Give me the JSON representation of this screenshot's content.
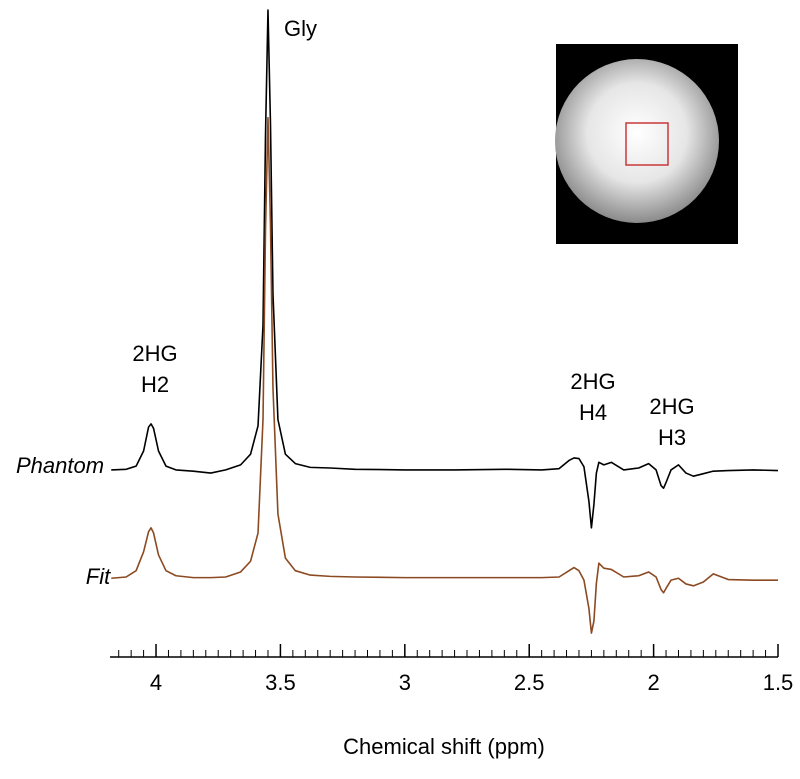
{
  "chart_data": {
    "type": "line",
    "x_label": "Chemical shift (ppm)",
    "x": [
      4.18,
      4.12,
      4.08,
      4.05,
      4.03,
      4.02,
      4.01,
      3.99,
      3.96,
      3.92,
      3.85,
      3.78,
      3.72,
      3.66,
      3.62,
      3.59,
      3.57,
      3.56,
      3.55,
      3.54,
      3.53,
      3.51,
      3.48,
      3.44,
      3.38,
      3.3,
      3.2,
      3.0,
      2.8,
      2.6,
      2.45,
      2.38,
      2.34,
      2.32,
      2.3,
      2.28,
      2.26,
      2.25,
      2.24,
      2.23,
      2.22,
      2.2,
      2.17,
      2.12,
      2.06,
      2.02,
      1.99,
      1.97,
      1.96,
      1.95,
      1.93,
      1.9,
      1.87,
      1.84,
      1.8,
      1.76,
      1.7,
      1.6,
      1.5
    ],
    "series": [
      {
        "name": "Phantom",
        "color": "#000000",
        "values": [
          27.0,
          27.1,
          27.6,
          30.0,
          33.8,
          34.3,
          33.6,
          30.0,
          27.6,
          27.0,
          26.8,
          26.5,
          27.0,
          27.8,
          29.5,
          34.0,
          50.0,
          80.0,
          100,
          82,
          55,
          35,
          29.5,
          28.0,
          27.4,
          27.3,
          27.1,
          27.0,
          27.0,
          27.1,
          27.0,
          27.2,
          28.5,
          28.9,
          28.8,
          27.5,
          22.0,
          17.8,
          21.5,
          26.5,
          28.2,
          27.8,
          28.2,
          27.0,
          27.3,
          28.0,
          27.0,
          24.5,
          24.1,
          25.0,
          27.0,
          27.8,
          26.5,
          26.0,
          26.4,
          26.8,
          26.9,
          27.0,
          26.9
        ]
      },
      {
        "name": "Fit",
        "color": "#8b4a22",
        "values": [
          9.8,
          10.0,
          11.0,
          14.0,
          17.2,
          17.8,
          17.0,
          13.5,
          11.0,
          10.2,
          9.9,
          9.9,
          10.0,
          10.8,
          12.5,
          17.0,
          35.0,
          65.0,
          82.9,
          66,
          40,
          20,
          13.0,
          11.0,
          10.3,
          10.1,
          10.0,
          9.9,
          9.9,
          9.9,
          9.9,
          10.0,
          11.0,
          11.5,
          11.0,
          9.5,
          5.0,
          1.1,
          3.0,
          9.0,
          12.2,
          11.4,
          11.2,
          10.0,
          10.2,
          10.8,
          10.0,
          8.0,
          7.5,
          8.2,
          9.5,
          9.8,
          8.9,
          8.6,
          9.2,
          10.5,
          9.6,
          9.5,
          9.5
        ]
      }
    ],
    "xlim": [
      4.185,
      1.5
    ],
    "xticks": [
      4,
      3.5,
      3,
      2.5,
      2,
      1.5
    ],
    "xminorticks": [
      4.15,
      4.1,
      4.05,
      4,
      3.95,
      3.9,
      3.85,
      3.8,
      3.75,
      3.7,
      3.65,
      3.6,
      3.55,
      3.5,
      3.45,
      3.4,
      3.35,
      3.3,
      3.25,
      3.2,
      3.15,
      3.1,
      3.05,
      3,
      2.95,
      2.9,
      2.85,
      2.8,
      2.75,
      2.7,
      2.65,
      2.6,
      2.55,
      2.5,
      2.45,
      2.4,
      2.35,
      2.3,
      2.25,
      2.2,
      2.15,
      2.1,
      2.05,
      2,
      1.95,
      1.9,
      1.85,
      1.8,
      1.75,
      1.7,
      1.65,
      1.6,
      1.55,
      1.5
    ],
    "ylim": [
      0,
      100
    ],
    "annotations": [
      [
        "Gly"
      ],
      [
        "2HG",
        "H2"
      ],
      [
        "2HG",
        "H4"
      ],
      [
        "2HG",
        "H3"
      ]
    ]
  }
}
